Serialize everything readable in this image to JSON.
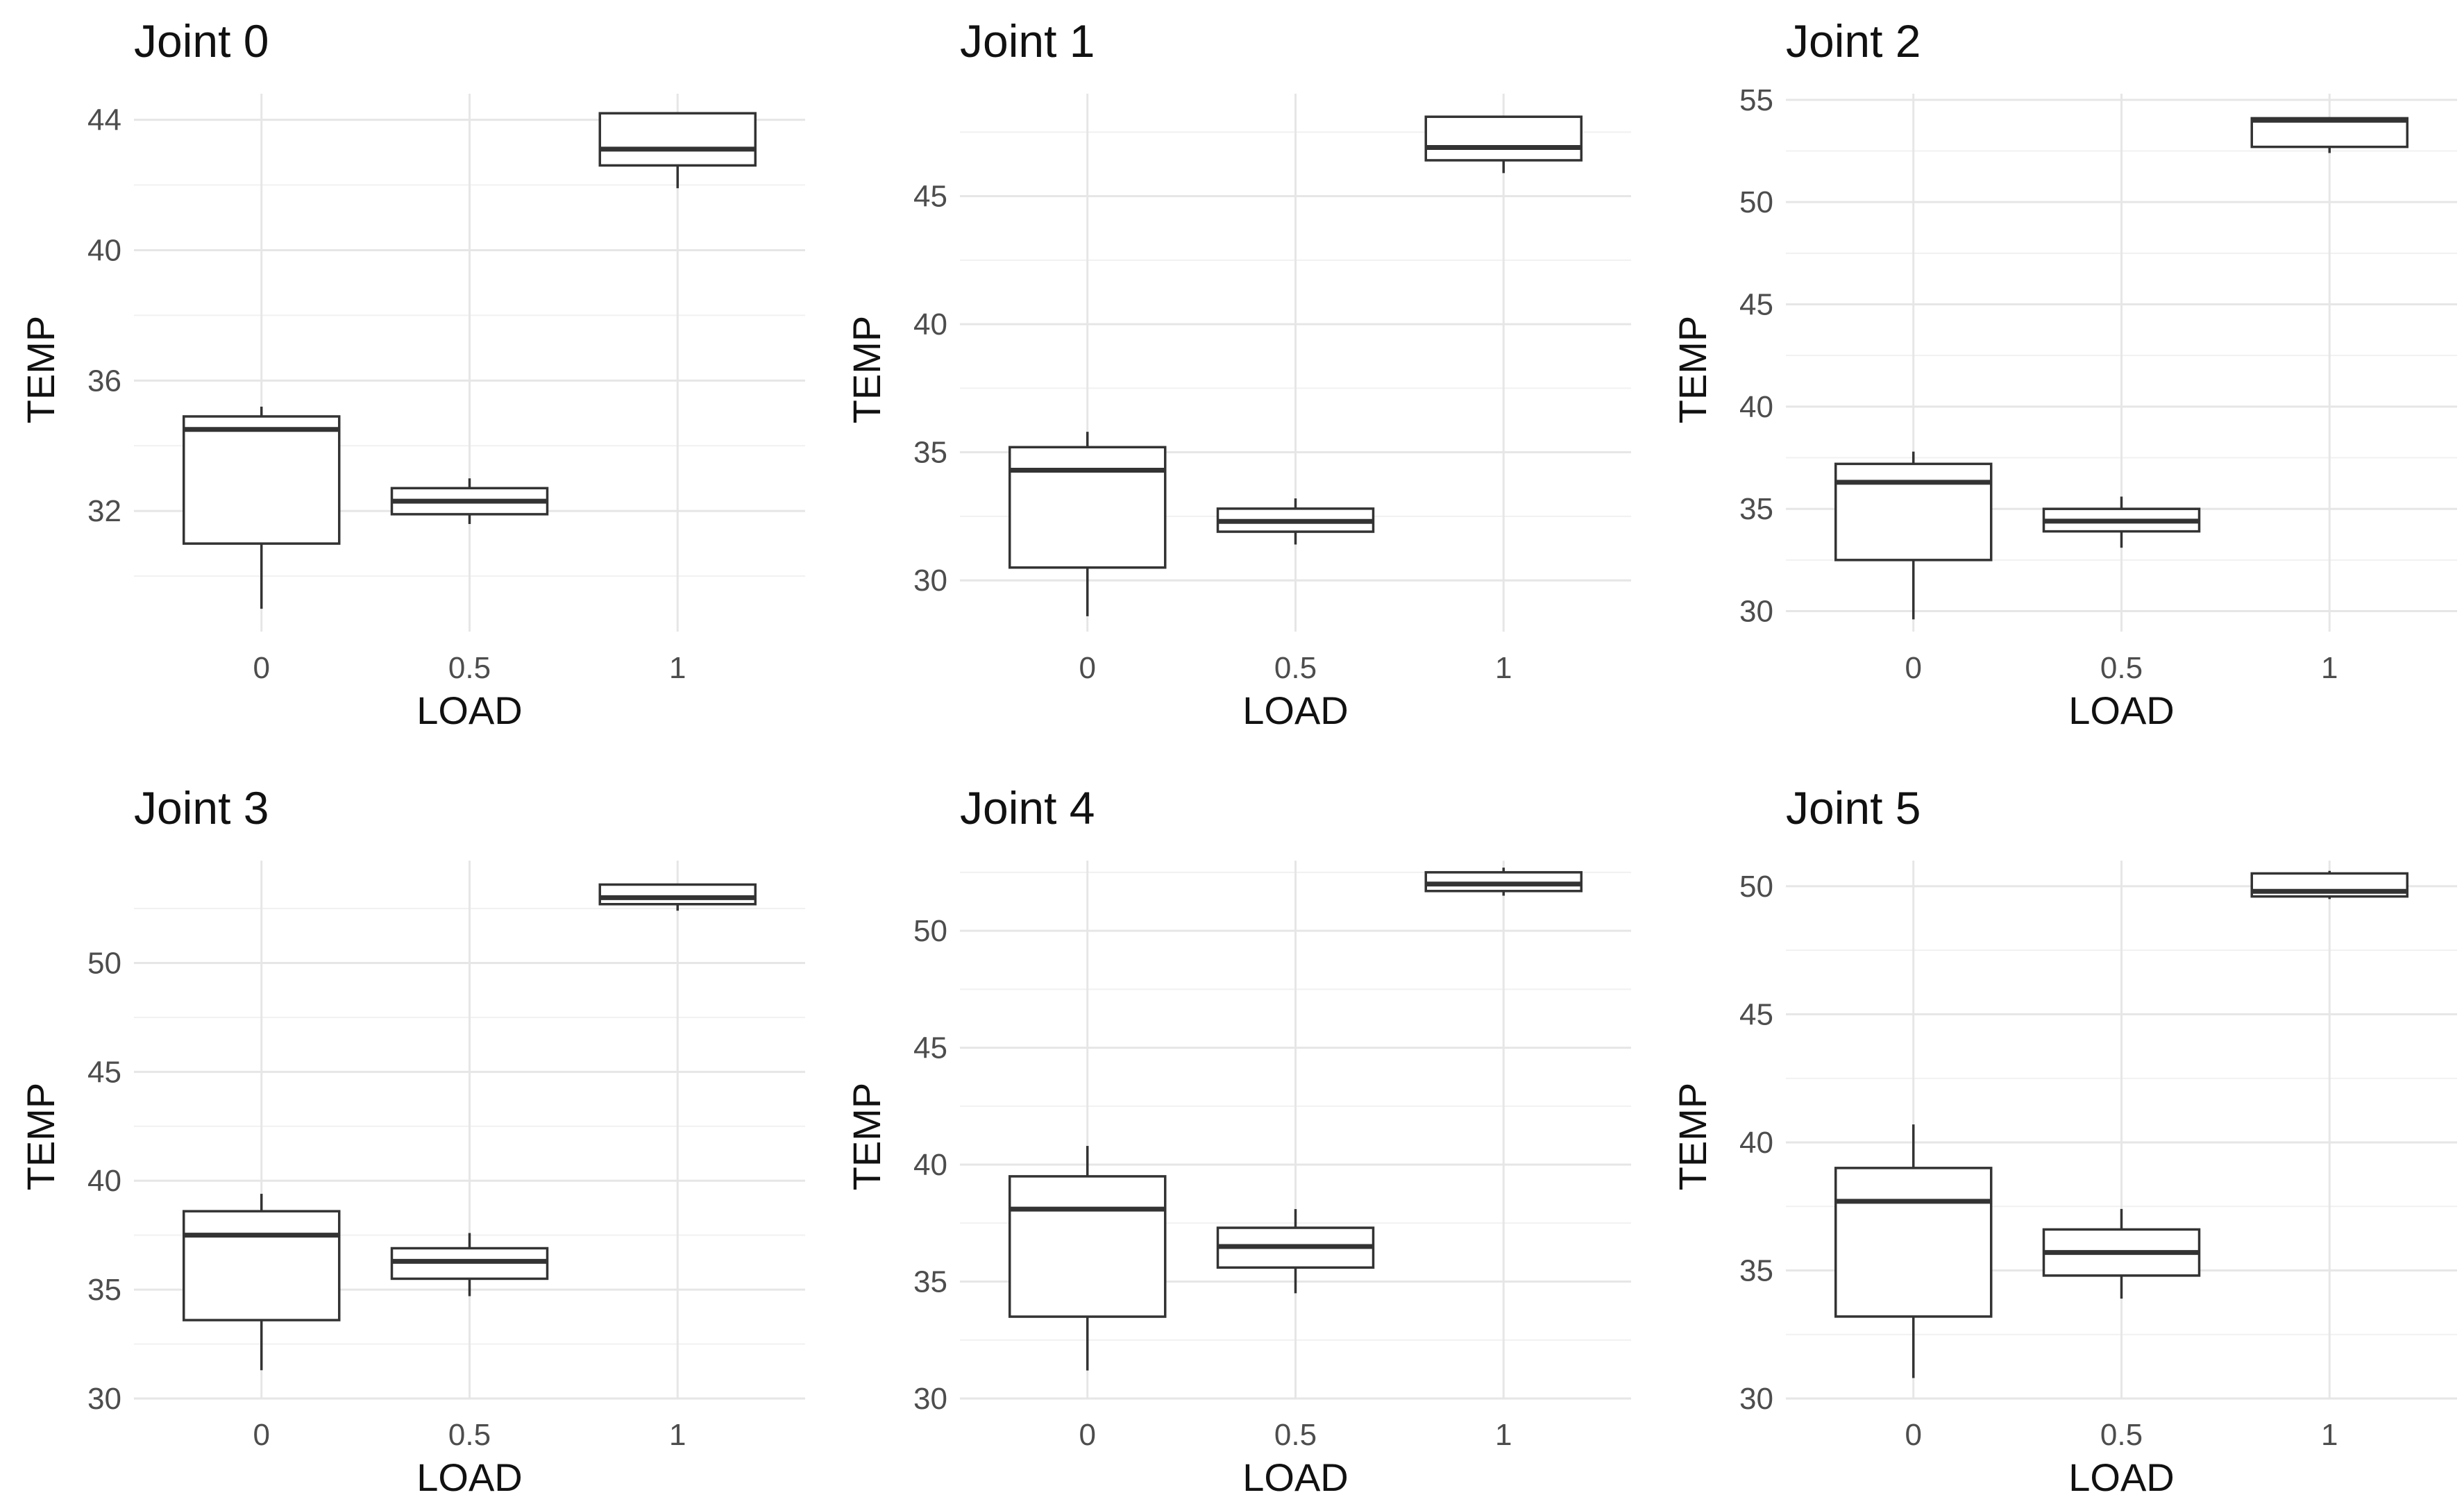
{
  "chart_data": [
    {
      "type": "boxplot",
      "title": "Joint 0",
      "xlabel": "LOAD",
      "ylabel": "TEMP",
      "categories": [
        "0",
        "0.5",
        "1"
      ],
      "ylim": [
        28.3,
        44.8
      ],
      "yticks": [
        32,
        36,
        40,
        44
      ],
      "yticklabels": [
        "32",
        "36",
        "40",
        "44"
      ],
      "boxes": [
        {
          "category": "0",
          "min": 29.0,
          "q1": 31.0,
          "median": 34.5,
          "q3": 34.9,
          "max": 35.2
        },
        {
          "category": "0.5",
          "min": 31.6,
          "q1": 31.9,
          "median": 32.3,
          "q3": 32.7,
          "max": 33.0
        },
        {
          "category": "1",
          "min": 41.9,
          "q1": 42.6,
          "median": 43.1,
          "q3": 44.2,
          "max": 44.2
        }
      ]
    },
    {
      "type": "boxplot",
      "title": "Joint 1",
      "xlabel": "LOAD",
      "ylabel": "TEMP",
      "categories": [
        "0",
        "0.5",
        "1"
      ],
      "ylim": [
        28.0,
        49.0
      ],
      "yticks": [
        30,
        35,
        40,
        45
      ],
      "yticklabels": [
        "30",
        "35",
        "40",
        "45"
      ],
      "boxes": [
        {
          "category": "0",
          "min": 28.6,
          "q1": 30.5,
          "median": 34.3,
          "q3": 35.2,
          "max": 35.8
        },
        {
          "category": "0.5",
          "min": 31.4,
          "q1": 31.9,
          "median": 32.3,
          "q3": 32.8,
          "max": 33.2
        },
        {
          "category": "1",
          "min": 45.9,
          "q1": 46.4,
          "median": 46.9,
          "q3": 48.1,
          "max": 48.1
        }
      ]
    },
    {
      "type": "boxplot",
      "title": "Joint 2",
      "xlabel": "LOAD",
      "ylabel": "TEMP",
      "categories": [
        "0",
        "0.5",
        "1"
      ],
      "ylim": [
        29.0,
        55.3
      ],
      "yticks": [
        30,
        35,
        40,
        45,
        50,
        55
      ],
      "yticklabels": [
        "30",
        "35",
        "40",
        "45",
        "50",
        "55"
      ],
      "boxes": [
        {
          "category": "0",
          "min": 29.6,
          "q1": 32.5,
          "median": 36.3,
          "q3": 37.2,
          "max": 37.8
        },
        {
          "category": "0.5",
          "min": 33.1,
          "q1": 33.9,
          "median": 34.4,
          "q3": 35.0,
          "max": 35.6
        },
        {
          "category": "1",
          "min": 52.4,
          "q1": 52.7,
          "median": 54.0,
          "q3": 54.1,
          "max": 54.1
        }
      ]
    },
    {
      "type": "boxplot",
      "title": "Joint 3",
      "xlabel": "LOAD",
      "ylabel": "TEMP",
      "categories": [
        "0",
        "0.5",
        "1"
      ],
      "ylim": [
        30.0,
        54.7
      ],
      "yticks": [
        30,
        35,
        40,
        45,
        50
      ],
      "yticklabels": [
        "30",
        "35",
        "40",
        "45",
        "50"
      ],
      "boxes": [
        {
          "category": "0",
          "min": 31.3,
          "q1": 33.6,
          "median": 37.5,
          "q3": 38.6,
          "max": 39.4
        },
        {
          "category": "0.5",
          "min": 34.7,
          "q1": 35.5,
          "median": 36.3,
          "q3": 36.9,
          "max": 37.6
        },
        {
          "category": "1",
          "min": 52.4,
          "q1": 52.7,
          "median": 53.0,
          "q3": 53.6,
          "max": 53.6
        }
      ]
    },
    {
      "type": "boxplot",
      "title": "Joint 4",
      "xlabel": "LOAD",
      "ylabel": "TEMP",
      "categories": [
        "0",
        "0.5",
        "1"
      ],
      "ylim": [
        30.0,
        53.0
      ],
      "yticks": [
        30,
        35,
        40,
        45,
        50
      ],
      "yticklabels": [
        "30",
        "35",
        "40",
        "45",
        "50"
      ],
      "boxes": [
        {
          "category": "0",
          "min": 31.2,
          "q1": 33.5,
          "median": 38.1,
          "q3": 39.5,
          "max": 40.8
        },
        {
          "category": "0.5",
          "min": 34.5,
          "q1": 35.6,
          "median": 36.5,
          "q3": 37.3,
          "max": 38.1
        },
        {
          "category": "1",
          "min": 51.5,
          "q1": 51.7,
          "median": 52.0,
          "q3": 52.5,
          "max": 52.7
        }
      ]
    },
    {
      "type": "boxplot",
      "title": "Joint 5",
      "xlabel": "LOAD",
      "ylabel": "TEMP",
      "categories": [
        "0",
        "0.5",
        "1"
      ],
      "ylim": [
        30.0,
        51.0
      ],
      "yticks": [
        30,
        35,
        40,
        45,
        50
      ],
      "yticklabels": [
        "30",
        "35",
        "40",
        "45",
        "50"
      ],
      "boxes": [
        {
          "category": "0",
          "min": 30.8,
          "q1": 33.2,
          "median": 37.7,
          "q3": 39.0,
          "max": 40.7
        },
        {
          "category": "0.5",
          "min": 33.9,
          "q1": 34.8,
          "median": 35.7,
          "q3": 36.6,
          "max": 37.4
        },
        {
          "category": "1",
          "min": 49.5,
          "q1": 49.6,
          "median": 49.8,
          "q3": 50.5,
          "max": 50.6
        }
      ]
    }
  ]
}
